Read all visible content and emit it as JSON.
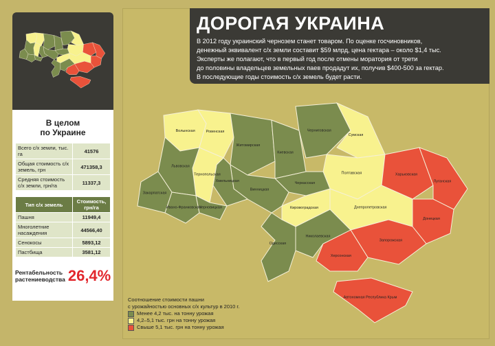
{
  "header": {
    "title": "ДОРОГАЯ УКРАИНА",
    "text": [
      "В 2012 году украинский чернозем станет товаром. По оценке госчиновников,",
      "денежный эквивалент с/х земли составит $59 млрд, цена гектара – около $1,4 тыс.",
      "Эксперты же полагают, что в первый год после отмены моратория от трети",
      "до половины владельцев земельных паев продадут их, получив $400-500 за гектар.",
      "В последующие годы стоимость с/х земель будет расти."
    ]
  },
  "summary": {
    "title": [
      "В целом",
      "по Украине"
    ],
    "totals": [
      [
        "Всего с/х земли, тыс. га",
        "41576"
      ],
      [
        "Общая стоимость с/х земель, грн",
        "471358,3"
      ],
      [
        "Средняя стоимость с/х земли, грн/га",
        "11337,3"
      ]
    ],
    "types": {
      "header": [
        "Тип с/х земель",
        "Стоимость, грн/га"
      ],
      "rows": [
        [
          "Пашня",
          "11949,4"
        ],
        [
          "Многолетние насаждения",
          "44566,40"
        ],
        [
          "Сенокосы",
          "5893,12"
        ],
        [
          "Пастбища",
          "3581,12"
        ]
      ]
    },
    "profitability": {
      "label": [
        "Рентабельность",
        "растениеводства"
      ],
      "value": "26,4%"
    }
  },
  "legend": {
    "title": [
      "Соотношение стоимости пашни",
      "с урожайностью основных с/х культур в 2010 г."
    ],
    "items": [
      {
        "label": "Менее 4,2 тыс. на тонну урожая",
        "color": "#7b8c4e"
      },
      {
        "label": "4,2–5,1 тыс. грн  на тонну урожая",
        "color": "#f8f28e"
      },
      {
        "label": "Свыше  5,1 тыс. грн  на тонну урожая",
        "color": "#e9523a"
      }
    ]
  },
  "regions": [
    {
      "name": "Волынская",
      "color": "#f8f28e"
    },
    {
      "name": "Ровенская",
      "color": "#f8f28e"
    },
    {
      "name": "Житомирская",
      "color": "#7b8c4e"
    },
    {
      "name": "Киевская",
      "color": "#7b8c4e"
    },
    {
      "name": "Черниговская",
      "color": "#7b8c4e"
    },
    {
      "name": "Сумская",
      "color": "#f8f28e"
    },
    {
      "name": "Полтавская",
      "color": "#f8f28e"
    },
    {
      "name": "Харьковская",
      "color": "#e9523a"
    },
    {
      "name": "Луганская",
      "color": "#e9523a"
    },
    {
      "name": "Донецкая",
      "color": "#e9523a"
    },
    {
      "name": "Днепропетровская",
      "color": "#f8f28e"
    },
    {
      "name": "Запорожская",
      "color": "#e9523a"
    },
    {
      "name": "Херсонская",
      "color": "#e9523a"
    },
    {
      "name": "Автономная Республика Крым",
      "color": "#e9523a"
    },
    {
      "name": "Николаевская",
      "color": "#7b8c4e"
    },
    {
      "name": "Кировоградская",
      "color": "#f8f28e"
    },
    {
      "name": "Черкасская",
      "color": "#7b8c4e"
    },
    {
      "name": "Винницкая",
      "color": "#7b8c4e"
    },
    {
      "name": "Одесская",
      "color": "#7b8c4e"
    },
    {
      "name": "Хмельницкая",
      "color": "#7b8c4e"
    },
    {
      "name": "Тернопольская",
      "color": "#f8f28e"
    },
    {
      "name": "Львовская",
      "color": "#7b8c4e"
    },
    {
      "name": "Закарпатская",
      "color": "#7b8c4e"
    },
    {
      "name": "Ивано-Франковская",
      "color": "#7b8c4e"
    },
    {
      "name": "Черновицкая",
      "color": "#7b8c4e"
    }
  ]
}
